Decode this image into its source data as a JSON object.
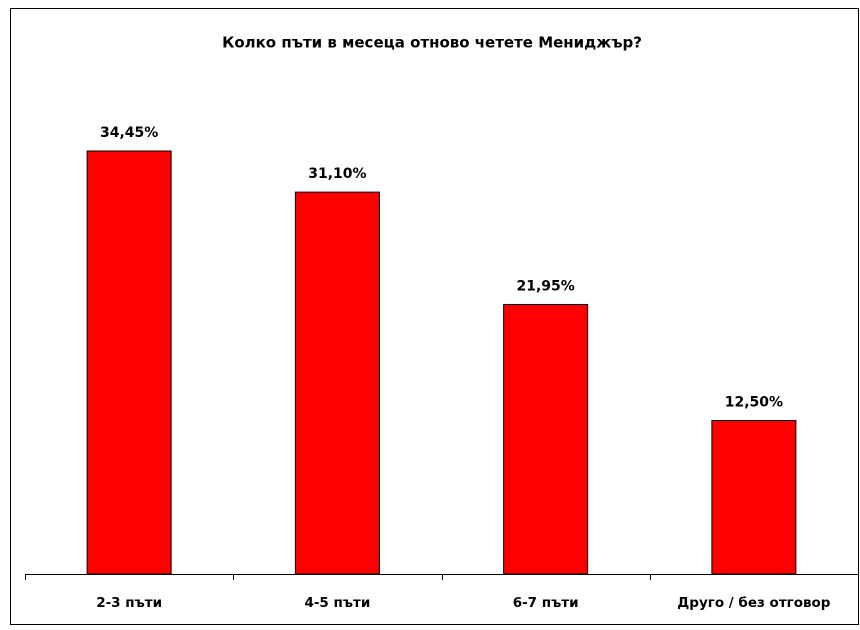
{
  "chart_data": {
    "type": "bar",
    "title": "Колко пъти в месеца отново четете Мениджър?",
    "categories": [
      "2-3 пъти",
      "4-5 пъти",
      "6-7 пъти",
      "Друго / без отговор"
    ],
    "values": [
      34.45,
      31.1,
      21.95,
      12.5
    ],
    "value_labels": [
      "34,45%",
      "31,10%",
      "21,95%",
      "12,50%"
    ],
    "color": "#ff0000"
  }
}
